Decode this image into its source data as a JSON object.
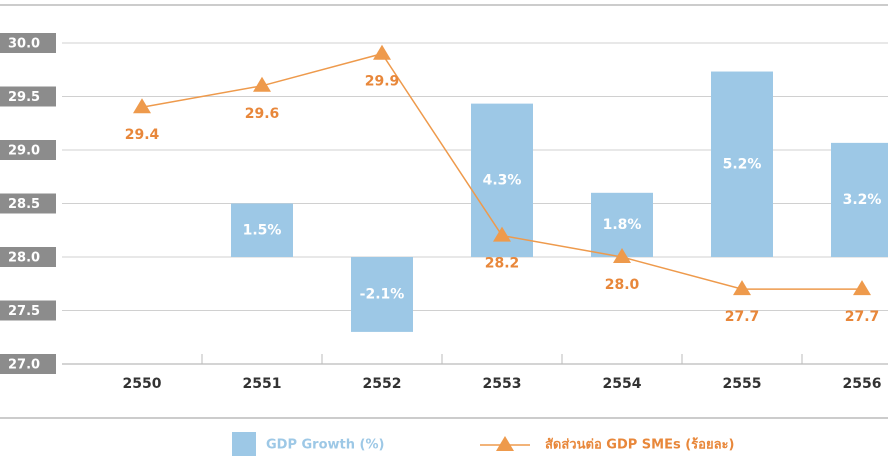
{
  "chart_data": {
    "type": "bar_line",
    "categories": [
      "2550",
      "2551",
      "2552",
      "2553",
      "2554",
      "2555",
      "2556"
    ],
    "series": [
      {
        "name": "GDP Growth (%)",
        "type": "bar",
        "axis": "y2",
        "color": "#9dc8e6",
        "values": [
          null,
          1.5,
          -2.1,
          4.3,
          1.8,
          5.2,
          3.2
        ],
        "value_labels": [
          null,
          "1.5%",
          "-2.1%",
          "4.3%",
          "1.8%",
          "5.2%",
          "3.2%"
        ]
      },
      {
        "name": "สัดส่วนต่อ GDP SMEs (ร้อยละ)",
        "type": "line",
        "color": "#ee9a4c",
        "values": [
          29.4,
          29.6,
          29.9,
          28.2,
          28.0,
          27.7,
          27.7
        ],
        "value_labels": [
          "29.4",
          "29.6",
          "29.9",
          "28.2",
          "28.0",
          "27.7",
          "27.7"
        ]
      }
    ],
    "ylim": [
      27,
      30
    ],
    "yticks": [
      {
        "value": 27,
        "label": "27.0"
      },
      {
        "value": 27.5,
        "label": "27.5"
      },
      {
        "value": 28,
        "label": "28.0"
      },
      {
        "value": 28.5,
        "label": "28.5"
      },
      {
        "value": 29,
        "label": "29.0"
      },
      {
        "value": 29.5,
        "label": "29.5"
      },
      {
        "value": 30,
        "label": "30.0"
      }
    ],
    "y2lim": [
      -3,
      6
    ],
    "grid": true
  }
}
